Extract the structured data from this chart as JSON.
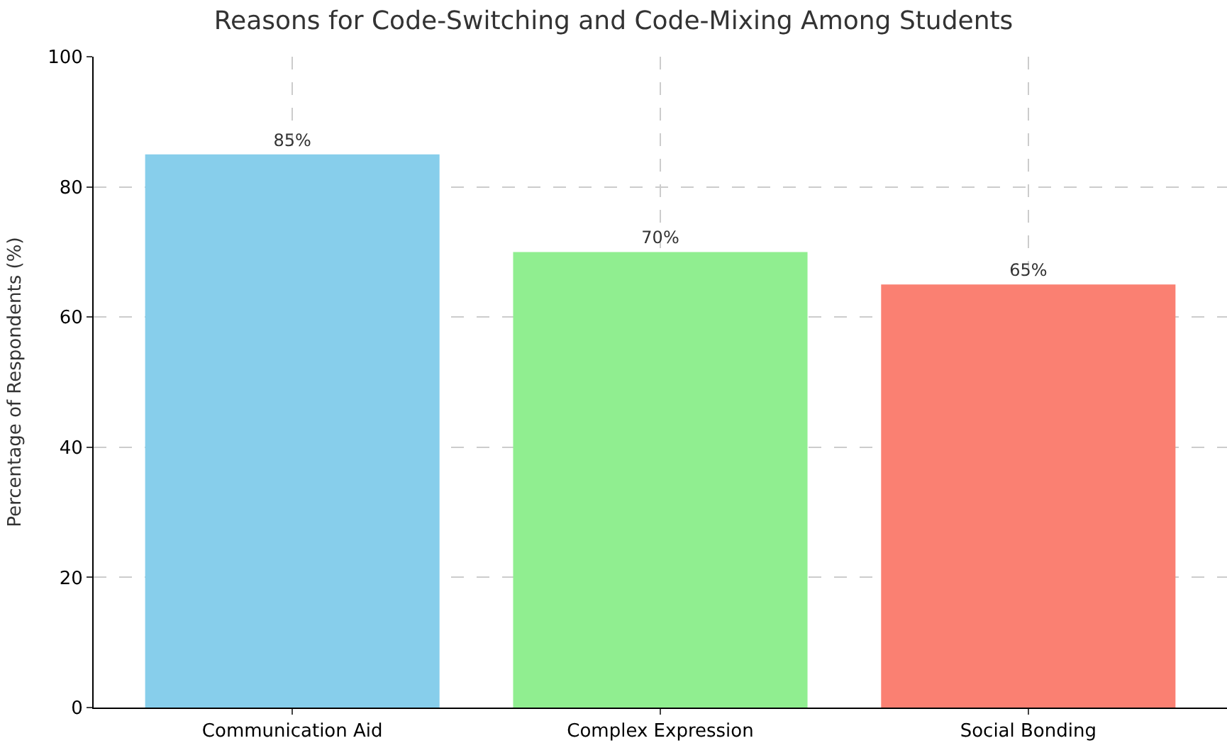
{
  "chart_data": {
    "type": "bar",
    "title": "Reasons for Code-Switching and Code-Mixing Among Students",
    "ylabel": "Percentage of Respondents (%)",
    "categories": [
      "Communication Aid",
      "Complex Expression",
      "Social Bonding"
    ],
    "values": [
      85,
      70,
      65
    ],
    "value_labels": [
      "85%",
      "70%",
      "65%"
    ],
    "colors": [
      "#87ceeb",
      "#90ee90",
      "#fa8072"
    ],
    "ylim": [
      0,
      100
    ],
    "yticks": [
      0,
      20,
      40,
      60,
      80,
      100
    ],
    "grid": true
  }
}
